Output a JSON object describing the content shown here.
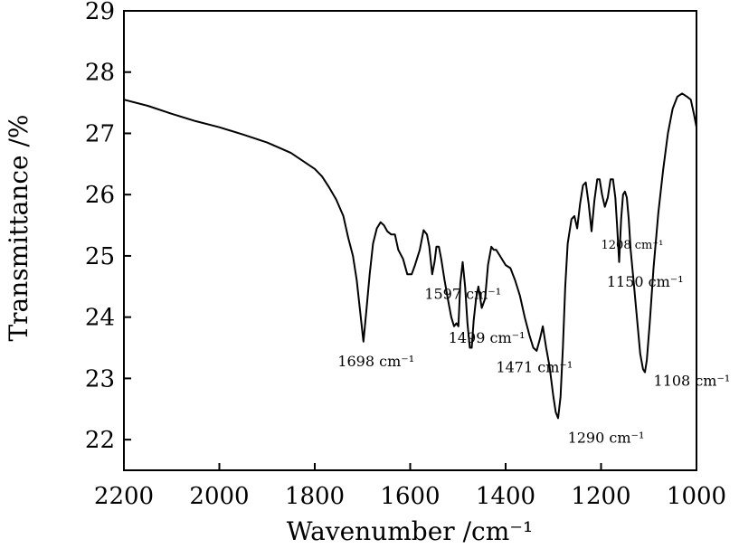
{
  "chart_data": {
    "type": "line",
    "title": "",
    "xlabel": "Wavenumber /cm⁻¹",
    "ylabel": "Transmittance /%",
    "xlim": [
      2200,
      1000
    ],
    "ylim": [
      21.5,
      29
    ],
    "x_reversed": true,
    "grid": false,
    "legend": "none",
    "xticks": [
      2200,
      2000,
      1800,
      1600,
      1400,
      1200,
      1000
    ],
    "yticks": [
      22,
      23,
      24,
      25,
      26,
      27,
      28,
      29
    ],
    "line_color": "#000000",
    "series": [
      {
        "x": [
          2200,
          2150,
          2100,
          2050,
          2000,
          1950,
          1900,
          1870,
          1850,
          1825,
          1800,
          1785,
          1770,
          1755,
          1740,
          1730,
          1720,
          1712,
          1705,
          1698,
          1692,
          1685,
          1678,
          1670,
          1662,
          1655,
          1648,
          1640,
          1632,
          1625,
          1615,
          1606,
          1597,
          1590,
          1580,
          1572,
          1565,
          1560,
          1554,
          1549,
          1545,
          1540,
          1535,
          1528,
          1520,
          1514,
          1508,
          1503,
          1499,
          1495,
          1490,
          1485,
          1480,
          1475,
          1471,
          1467,
          1462,
          1457,
          1450,
          1443,
          1437,
          1430,
          1425,
          1420,
          1412,
          1400,
          1390,
          1380,
          1370,
          1360,
          1350,
          1342,
          1335,
          1328,
          1322,
          1315,
          1308,
          1300,
          1295,
          1290,
          1285,
          1280,
          1275,
          1270,
          1262,
          1256,
          1250,
          1244,
          1238,
          1232,
          1226,
          1220,
          1214,
          1208,
          1203,
          1198,
          1192,
          1186,
          1180,
          1175,
          1170,
          1166,
          1162,
          1158,
          1154,
          1150,
          1146,
          1142,
          1138,
          1132,
          1125,
          1118,
          1112,
          1108,
          1104,
          1098,
          1090,
          1080,
          1070,
          1060,
          1050,
          1040,
          1030,
          1020,
          1012,
          1005,
          1000
        ],
        "y": [
          27.55,
          27.45,
          27.32,
          27.2,
          27.1,
          26.98,
          26.85,
          26.75,
          26.68,
          26.55,
          26.42,
          26.3,
          26.12,
          25.92,
          25.65,
          25.3,
          25.0,
          24.6,
          24.1,
          23.6,
          24.1,
          24.7,
          25.2,
          25.45,
          25.55,
          25.5,
          25.4,
          25.35,
          25.35,
          25.1,
          24.95,
          24.7,
          24.7,
          24.85,
          25.1,
          25.42,
          25.35,
          25.15,
          24.7,
          24.9,
          25.15,
          25.15,
          24.95,
          24.6,
          24.25,
          24.0,
          23.85,
          23.9,
          23.85,
          24.55,
          24.9,
          24.5,
          23.9,
          23.5,
          23.5,
          23.95,
          24.3,
          24.5,
          24.15,
          24.3,
          24.85,
          25.15,
          25.1,
          25.1,
          25.0,
          24.85,
          24.8,
          24.6,
          24.35,
          24.0,
          23.7,
          23.5,
          23.45,
          23.65,
          23.85,
          23.5,
          23.2,
          22.7,
          22.45,
          22.35,
          22.7,
          23.5,
          24.5,
          25.2,
          25.6,
          25.65,
          25.45,
          25.85,
          26.15,
          26.2,
          25.85,
          25.4,
          25.9,
          26.25,
          26.25,
          26.0,
          25.8,
          25.95,
          26.25,
          26.25,
          25.95,
          25.45,
          24.9,
          25.6,
          26.0,
          26.05,
          25.95,
          25.6,
          25.1,
          24.6,
          24.0,
          23.4,
          23.15,
          23.1,
          23.3,
          23.9,
          24.8,
          25.7,
          26.4,
          27.0,
          27.4,
          27.6,
          27.65,
          27.6,
          27.55,
          27.3,
          27.1
        ]
      }
    ],
    "annotations": [
      {
        "text": "1698 cm⁻¹",
        "x": 1752,
        "y": 23.2,
        "small": false
      },
      {
        "text": "1597 cm⁻¹",
        "x": 1570,
        "y": 24.3,
        "small": false
      },
      {
        "text": "1499 cm⁻¹",
        "x": 1520,
        "y": 23.58,
        "small": false
      },
      {
        "text": "1471 cm⁻¹",
        "x": 1420,
        "y": 23.1,
        "small": false
      },
      {
        "text": "1290 cm⁻¹",
        "x": 1270,
        "y": 21.95,
        "small": false
      },
      {
        "text": "1208 cm⁻¹",
        "x": 1200,
        "y": 25.12,
        "small": true
      },
      {
        "text": "1150 cm⁻¹",
        "x": 1188,
        "y": 24.5,
        "small": false
      },
      {
        "text": "1108 cm⁻¹",
        "x": 1090,
        "y": 22.88,
        "small": false
      }
    ]
  }
}
